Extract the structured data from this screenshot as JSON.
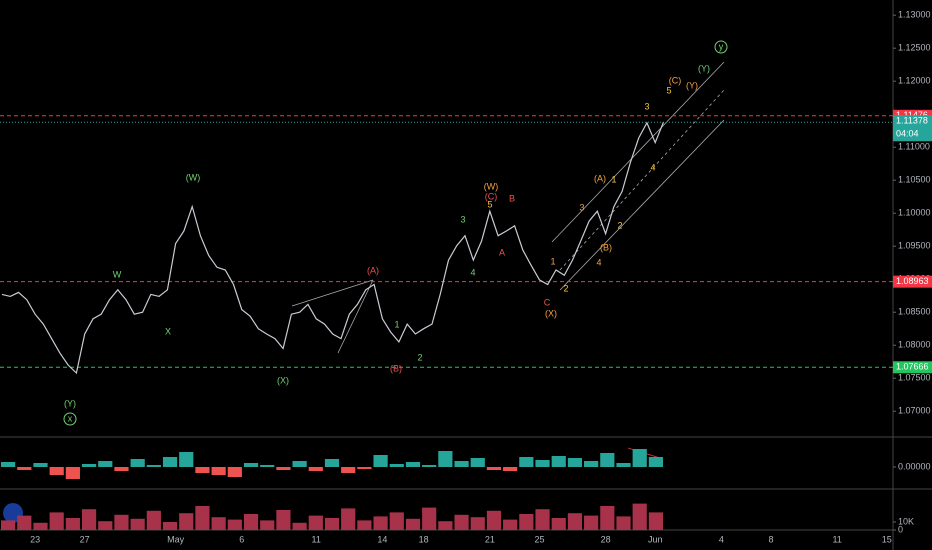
{
  "chart_data": [
    {
      "type": "line",
      "color": "#c9ccd4",
      "categories": [
        null,
        null,
        null,
        null,
        "23",
        null,
        null,
        null,
        null,
        null,
        "27",
        null,
        null,
        null,
        null,
        null,
        null,
        null,
        null,
        null,
        null,
        "May",
        null,
        null,
        null,
        null,
        null,
        null,
        null,
        "6",
        null,
        null,
        null,
        null,
        null,
        null,
        null,
        null,
        "11",
        null,
        null,
        null,
        null,
        null,
        null,
        null,
        "14",
        null,
        null,
        null,
        null,
        "18",
        null,
        null,
        null,
        null,
        null,
        null,
        null,
        "21",
        null,
        null,
        null,
        null,
        null,
        "25",
        null,
        null,
        null,
        null,
        null,
        null,
        null,
        "28",
        null,
        null,
        null,
        null,
        null,
        "Jun",
        null,
        null,
        null,
        null,
        null,
        null,
        null,
        "4",
        null,
        null,
        null,
        null,
        null,
        "8",
        null,
        null,
        null,
        null,
        null,
        null,
        null,
        "11",
        null,
        null,
        null,
        null,
        null,
        "15"
      ],
      "values": [
        1.0877,
        1.0874,
        1.088,
        1.0869,
        1.0847,
        1.0832,
        1.081,
        1.0788,
        1.077,
        1.0758,
        1.0817,
        1.084,
        1.0847,
        1.0869,
        1.0884,
        1.0869,
        1.0847,
        1.085,
        1.0877,
        1.0874,
        1.0884,
        1.0954,
        1.0973,
        1.101,
        1.0966,
        1.0936,
        1.0918,
        1.0914,
        1.0892,
        1.0854,
        1.0844,
        1.0825,
        1.0817,
        1.081,
        1.0795,
        1.0847,
        1.085,
        1.0862,
        1.084,
        1.0832,
        1.0817,
        1.081,
        1.0847,
        1.0862,
        1.0884,
        1.0892,
        1.084,
        1.082,
        1.0805,
        1.0832,
        1.0817,
        1.0825,
        1.0832,
        1.0877,
        1.0929,
        1.0951,
        1.0966,
        1.0929,
        1.0958,
        1.1003,
        1.0966,
        1.0973,
        1.0981,
        1.0944,
        1.0921,
        1.0899,
        1.0892,
        1.0914,
        1.0906,
        1.0929,
        1.0958,
        1.0988,
        1.1003,
        1.0969,
        1.101,
        1.1033,
        1.1077,
        1.1114,
        1.1137,
        1.1107,
        1.1138,
        null,
        null,
        null,
        null,
        null,
        null,
        null,
        null,
        null,
        null,
        null,
        null,
        null,
        null,
        null,
        null,
        null,
        null,
        null,
        null,
        null,
        null,
        null,
        null,
        null,
        null,
        null
      ],
      "ylim": [
        1.0664,
        1.1323
      ],
      "yticks": [
        {
          "value": 1.07,
          "label": "1.07000"
        },
        {
          "value": 1.075,
          "label": "1.07500"
        },
        {
          "value": 1.08,
          "label": "1.08000"
        },
        {
          "value": 1.085,
          "label": "1.08500"
        },
        {
          "value": 1.09,
          "label": "1.09000"
        },
        {
          "value": 1.095,
          "label": "1.09500"
        },
        {
          "value": 1.1,
          "label": "1.10000"
        },
        {
          "value": 1.105,
          "label": "1.10500"
        },
        {
          "value": 1.11,
          "label": "1.11000"
        },
        {
          "value": 1.115,
          "label": "1.11500"
        },
        {
          "value": 1.12,
          "label": "1.12000"
        },
        {
          "value": 1.125,
          "label": "1.12500"
        },
        {
          "value": 1.13,
          "label": "1.13000"
        }
      ],
      "levels": [
        {
          "value": 1.11476,
          "color": "#f23645"
        },
        {
          "value": 1.08963,
          "color": "#f23645"
        },
        {
          "value": 1.07666,
          "color": "#22c55e"
        }
      ],
      "last_price": {
        "value": 1.11378,
        "countdown": "04:04",
        "color": "#26a69a"
      },
      "annotations": [
        {
          "text": "(Y)",
          "color": "#6fd36f"
        },
        {
          "text": "x",
          "color": "#6fd36f",
          "circled": true
        },
        {
          "text": "W",
          "color": "#6fd36f"
        },
        {
          "text": "X",
          "color": "#6fd36f"
        },
        {
          "text": "(W)",
          "color": "#6fd36f"
        },
        {
          "text": "(X)",
          "color": "#6fd36f"
        },
        {
          "text": "(A)",
          "color": "#f0504f"
        },
        {
          "text": "(B)",
          "color": "#f0504f"
        },
        {
          "text": "1",
          "color": "#6fd36f"
        },
        {
          "text": "2",
          "color": "#6fd36f"
        },
        {
          "text": "3",
          "color": "#6fd36f"
        },
        {
          "text": "4",
          "color": "#6fd36f"
        },
        {
          "text": "(W)",
          "color": "#f5a340"
        },
        {
          "text": "(C)",
          "color": "#f0504f"
        },
        {
          "text": "5",
          "color": "#f5c542"
        },
        {
          "text": "B",
          "color": "#f0504f"
        },
        {
          "text": "A",
          "color": "#f0504f"
        },
        {
          "text": "C",
          "color": "#f0504f"
        },
        {
          "text": "(X)",
          "color": "#f5a340"
        },
        {
          "text": "1",
          "color": "#f5a340"
        },
        {
          "text": "2",
          "color": "#f5c542"
        },
        {
          "text": "3",
          "color": "#f5a340"
        },
        {
          "text": "4",
          "color": "#f5a340"
        },
        {
          "text": "(A)",
          "color": "#f5a340"
        },
        {
          "text": "(B)",
          "color": "#f5a340"
        },
        {
          "text": "1",
          "color": "#f5c542"
        },
        {
          "text": "2",
          "color": "#f5c542"
        },
        {
          "text": "3",
          "color": "#f5c542"
        },
        {
          "text": "4",
          "color": "#f5c542"
        },
        {
          "text": "5",
          "color": "#f5c542"
        },
        {
          "text": "(C)",
          "color": "#f5a340"
        },
        {
          "text": "(Y)",
          "color": "#f5a340"
        },
        {
          "text": "(Y)",
          "color": "#6fd36f"
        },
        {
          "text": "y",
          "color": "#6fd36f",
          "circled": true
        }
      ]
    },
    {
      "type": "bar",
      "color": "#26a69a",
      "negative_color": "#ef5350",
      "values": [
        0.0005,
        -0.0003,
        0.0004,
        -0.0008,
        -0.0012,
        0.0003,
        0.0006,
        -0.0004,
        0.0008,
        0.0002,
        0.001,
        0.0015,
        -0.0006,
        -0.0008,
        -0.001,
        0.0004,
        0.0002,
        -0.0003,
        0.0006,
        -0.0004,
        0.0008,
        -0.0006,
        -0.0002,
        0.0012,
        0.0003,
        0.0005,
        0.0002,
        0.0016,
        0.0006,
        0.0009,
        -0.0003,
        -0.0004,
        0.001,
        0.0007,
        0.0011,
        0.0009,
        0.0006,
        0.0014,
        0.0004,
        0.0018,
        0.001
      ],
      "ylim": [
        -0.0021,
        0.0029
      ],
      "yticks": [
        {
          "value": 0,
          "label": "0.00000"
        }
      ]
    },
    {
      "type": "bar",
      "color": "#a8324a",
      "values": [
        12000,
        18000,
        9000,
        22000,
        15000,
        26000,
        11000,
        19000,
        14000,
        24000,
        10000,
        21000,
        30000,
        16000,
        13000,
        20000,
        12000,
        25000,
        9000,
        18000,
        15000,
        27000,
        12000,
        17000,
        22000,
        14000,
        28000,
        11000,
        19000,
        16000,
        24000,
        13000,
        20000,
        26000,
        15000,
        21000,
        18000,
        30000,
        17000,
        33000,
        22000
      ],
      "ylim": [
        0,
        50000
      ],
      "yticks": [
        0,
        {
          "value": 10000,
          "label": "10K"
        }
      ]
    }
  ]
}
